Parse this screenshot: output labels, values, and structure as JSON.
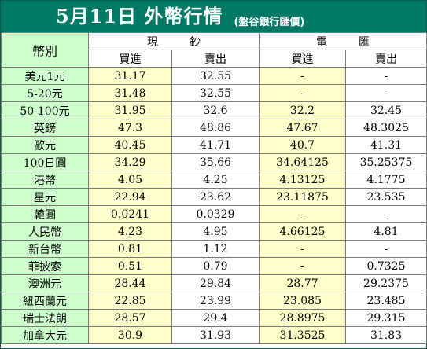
{
  "title": {
    "main": "5月11日 外幣行情",
    "source": "(盤谷銀行匯價)"
  },
  "header": {
    "currency_label": "幣別",
    "cash_label": "現鈔",
    "transfer_label": "電匯",
    "buy_label": "買進",
    "sell_label": "賣出"
  },
  "rows": [
    {
      "currency": "美元1元",
      "cash_buy": "31.17",
      "cash_sell": "32.55",
      "transfer_buy": "-",
      "transfer_sell": "-"
    },
    {
      "currency": "5-20元",
      "cash_buy": "31.48",
      "cash_sell": "32.55",
      "transfer_buy": "-",
      "transfer_sell": "-"
    },
    {
      "currency": "50-100元",
      "cash_buy": "31.95",
      "cash_sell": "32.6",
      "transfer_buy": "32.2",
      "transfer_sell": "32.45"
    },
    {
      "currency": "英鎊",
      "cash_buy": "47.3",
      "cash_sell": "48.86",
      "transfer_buy": "47.67",
      "transfer_sell": "48.3025"
    },
    {
      "currency": "歐元",
      "cash_buy": "40.45",
      "cash_sell": "41.71",
      "transfer_buy": "40.7",
      "transfer_sell": "41.31"
    },
    {
      "currency": "100日圓",
      "cash_buy": "34.29",
      "cash_sell": "35.66",
      "transfer_buy": "34.64125",
      "transfer_sell": "35.25375"
    },
    {
      "currency": "港幣",
      "cash_buy": "4.05",
      "cash_sell": "4.25",
      "transfer_buy": "4.13125",
      "transfer_sell": "4.1775"
    },
    {
      "currency": "星元",
      "cash_buy": "22.94",
      "cash_sell": "23.62",
      "transfer_buy": "23.11875",
      "transfer_sell": "23.535"
    },
    {
      "currency": "韓圓",
      "cash_buy": "0.0241",
      "cash_sell": "0.0329",
      "transfer_buy": "-",
      "transfer_sell": "-"
    },
    {
      "currency": "人民幣",
      "cash_buy": "4.23",
      "cash_sell": "4.95",
      "transfer_buy": "4.66125",
      "transfer_sell": "4.81"
    },
    {
      "currency": "新台幣",
      "cash_buy": "0.81",
      "cash_sell": "1.12",
      "transfer_buy": "-",
      "transfer_sell": "-"
    },
    {
      "currency": "菲披索",
      "cash_buy": "0.51",
      "cash_sell": "0.79",
      "transfer_buy": "-",
      "transfer_sell": "0.7325"
    },
    {
      "currency": "澳洲元",
      "cash_buy": "28.44",
      "cash_sell": "29.84",
      "transfer_buy": "28.77",
      "transfer_sell": "29.2375"
    },
    {
      "currency": "紐西蘭元",
      "cash_buy": "22.85",
      "cash_sell": "23.99",
      "transfer_buy": "23.085",
      "transfer_sell": "23.485"
    },
    {
      "currency": "瑞士法朗",
      "cash_buy": "28.57",
      "cash_sell": "29.4",
      "transfer_buy": "28.8975",
      "transfer_sell": "29.315"
    },
    {
      "currency": "加拿大元",
      "cash_buy": "30.9",
      "cash_sell": "31.93",
      "transfer_buy": "31.3525",
      "transfer_sell": "31.83"
    }
  ]
}
